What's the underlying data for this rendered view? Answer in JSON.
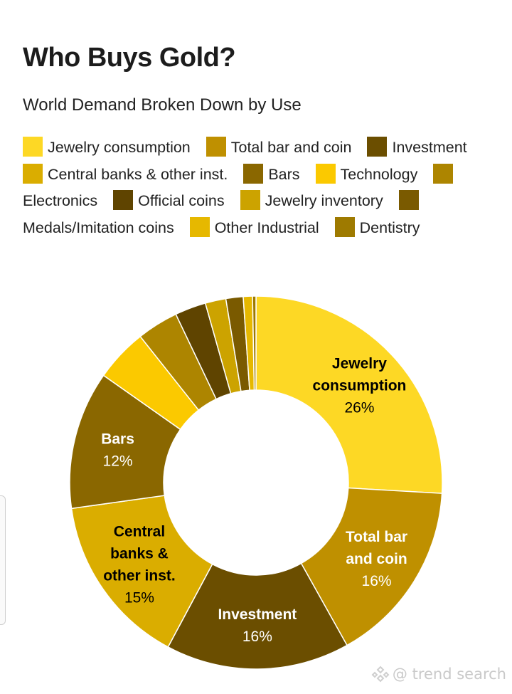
{
  "chart_data": {
    "type": "pie",
    "donut": true,
    "title": "Who Buys Gold?",
    "subtitle": "World Demand Broken Down by Use",
    "legend_position": "top",
    "slices": [
      {
        "name": "Jewelry consumption",
        "value": 26,
        "color": "#fdd825",
        "label_lines": [
          "Jewelry",
          "consumption"
        ],
        "label": "26%",
        "label_color": "#000000",
        "show_label": true
      },
      {
        "name": "Total bar and coin",
        "value": 16,
        "color": "#bf9000",
        "label_lines": [
          "Total bar",
          "and coin"
        ],
        "label": "16%",
        "label_color": "#ffffff",
        "show_label": true
      },
      {
        "name": "Investment",
        "value": 16,
        "color": "#6b4e00",
        "label_lines": [
          "Investment"
        ],
        "label": "16%",
        "label_color": "#ffffff",
        "show_label": true
      },
      {
        "name": "Central banks & other inst.",
        "value": 15,
        "color": "#daad00",
        "label_lines": [
          "Central",
          "banks &",
          "other inst."
        ],
        "label": "15%",
        "label_color": "#000000",
        "show_label": true
      },
      {
        "name": "Bars",
        "value": 12,
        "color": "#8a6700",
        "label_lines": [
          "Bars"
        ],
        "label": "12%",
        "label_color": "#ffffff",
        "show_label": true
      },
      {
        "name": "Technology",
        "value": 4.6,
        "color": "#fbc900",
        "show_label": false
      },
      {
        "name": "Electronics",
        "value": 3.6,
        "color": "#ad8500",
        "show_label": false
      },
      {
        "name": "Official coins",
        "value": 2.7,
        "color": "#5f4400",
        "show_label": false
      },
      {
        "name": "Jewelry inventory",
        "value": 1.8,
        "color": "#cca300",
        "show_label": false
      },
      {
        "name": "Medals/Imitation coins",
        "value": 1.5,
        "color": "#7a5a00",
        "show_label": false
      },
      {
        "name": "Other Industrial",
        "value": 0.8,
        "color": "#e6b800",
        "show_label": false
      },
      {
        "name": "Dentistry",
        "value": 0.3,
        "color": "#9e7a00",
        "show_label": false
      }
    ]
  },
  "watermark": "@ trend search"
}
